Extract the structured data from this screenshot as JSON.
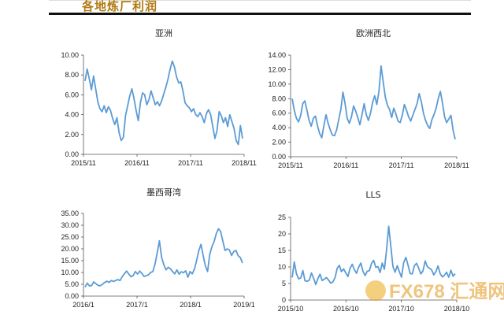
{
  "page": {
    "title": "各地炼厂利润",
    "watermark": "FX678 汇通网"
  },
  "colors": {
    "series": "#5b9bd5",
    "title": "#b07a10"
  },
  "chart_data": [
    {
      "type": "line",
      "title": "亚洲",
      "ylim": [
        0,
        10
      ],
      "yticks": [
        "10.00",
        "8.00",
        "6.00",
        "4.00",
        "2.00",
        "0.00"
      ],
      "xticks": [
        "2015/11",
        "2016/11",
        "2017/11",
        "2018/11"
      ],
      "x_range": [
        "2015/11",
        "2018/12"
      ],
      "grid": false,
      "series": [
        {
          "values": [
            7.4,
            8.6,
            7.6,
            6.5,
            7.9,
            6.6,
            5.3,
            4.6,
            4.3,
            4.9,
            4.2,
            4.8,
            4.4,
            3.6,
            3.0,
            3.7,
            2.2,
            1.4,
            1.7,
            3.9,
            4.9,
            5.9,
            6.6,
            5.6,
            4.4,
            3.4,
            5.2,
            6.2,
            6.0,
            5.0,
            5.5,
            6.4,
            5.7,
            5.0,
            5.3,
            4.9,
            5.4,
            6.1,
            6.8,
            7.6,
            8.6,
            9.4,
            8.8,
            7.8,
            7.2,
            7.3,
            6.4,
            5.2,
            4.9,
            4.7,
            4.3,
            4.6,
            4.0,
            3.8,
            4.2,
            3.8,
            3.2,
            4.1,
            4.5,
            4.0,
            2.8,
            1.6,
            2.4,
            4.3,
            3.9,
            3.2,
            3.7,
            2.8,
            4.0,
            3.3,
            2.6,
            1.4,
            1.0,
            2.9,
            1.6
          ]
        }
      ]
    },
    {
      "type": "line",
      "title": "欧洲西北",
      "ylim": [
        0,
        14
      ],
      "yticks": [
        "14.00",
        "12.00",
        "10.00",
        "8.00",
        "6.00",
        "4.00",
        "2.00",
        "0.00"
      ],
      "xticks": [
        "2015/11",
        "2016/11",
        "2017/11",
        "2018/11"
      ],
      "x_range": [
        "2015/11",
        "2018/12"
      ],
      "grid": false,
      "series": [
        {
          "values": [
            8.0,
            6.4,
            5.3,
            4.8,
            5.7,
            7.3,
            7.7,
            6.4,
            5.0,
            4.2,
            5.3,
            5.6,
            4.2,
            3.2,
            2.6,
            4.3,
            5.8,
            4.6,
            3.7,
            3.0,
            2.9,
            3.7,
            5.1,
            6.5,
            8.9,
            7.3,
            5.3,
            4.6,
            5.5,
            7.0,
            6.3,
            5.4,
            4.4,
            5.8,
            7.3,
            5.8,
            5.0,
            6.0,
            7.5,
            8.4,
            7.2,
            9.0,
            12.5,
            10.3,
            8.2,
            7.1,
            6.5,
            5.4,
            6.7,
            5.9,
            4.9,
            4.7,
            5.7,
            7.2,
            6.4,
            5.5,
            4.9,
            5.7,
            6.5,
            7.3,
            8.7,
            7.6,
            6.0,
            5.0,
            4.3,
            3.9,
            5.1,
            5.8,
            6.7,
            8.0,
            9.0,
            7.4,
            5.5,
            4.7,
            5.2,
            5.7,
            3.7,
            2.4
          ]
        }
      ]
    },
    {
      "type": "line",
      "title": "墨西哥湾",
      "ylim": [
        0,
        35
      ],
      "yticks": [
        "35.00",
        "30.00",
        "25.00",
        "20.00",
        "15.00",
        "10.00",
        "5.00",
        "0.00"
      ],
      "xticks": [
        "2016/1",
        "2017/1",
        "2018/1",
        "2019/1"
      ],
      "x_range": [
        "2016/1",
        "2019/1"
      ],
      "grid": false,
      "series": [
        {
          "values": [
            3.8,
            5.5,
            4.3,
            4.5,
            6.0,
            5.2,
            4.5,
            4.4,
            5.0,
            5.8,
            6.3,
            5.8,
            6.6,
            6.2,
            6.6,
            7.0,
            6.6,
            8.2,
            9.5,
            10.6,
            9.3,
            8.2,
            8.7,
            10.4,
            9.3,
            10.6,
            9.6,
            8.3,
            8.7,
            9.0,
            10.0,
            10.4,
            13.6,
            18.4,
            23.4,
            16.4,
            13.3,
            11.1,
            12.2,
            11.6,
            10.4,
            9.4,
            11.1,
            9.3,
            10.3,
            9.9,
            10.7,
            8.0,
            10.4,
            9.4,
            11.4,
            15.1,
            19.2,
            21.9,
            17.1,
            12.8,
            10.4,
            17.6,
            20.9,
            23.1,
            26.5,
            28.5,
            27.3,
            23.2,
            19.3,
            20.0,
            19.5,
            17.2,
            18.9,
            19.3,
            17.1,
            16.3,
            14.0
          ]
        }
      ]
    },
    {
      "type": "line",
      "title": "LLS",
      "ylim": [
        0,
        25
      ],
      "yticks": [
        "25",
        "20",
        "15",
        "10",
        "5",
        "0"
      ],
      "xticks": [
        "2015/10",
        "2016/10",
        "2017/10",
        "2018/10"
      ],
      "x_range": [
        "2015/10",
        "2018/11"
      ],
      "grid": false,
      "series": [
        {
          "values": [
            6.8,
            11.5,
            8.0,
            6.4,
            6.7,
            8.9,
            5.8,
            5.7,
            6.0,
            8.2,
            6.6,
            4.7,
            6.5,
            7.8,
            5.9,
            6.3,
            6.8,
            6.0,
            5.1,
            5.5,
            6.8,
            9.6,
            10.5,
            8.6,
            9.4,
            8.2,
            7.1,
            9.6,
            10.8,
            9.2,
            8.1,
            9.9,
            11.2,
            8.7,
            7.4,
            8.7,
            8.9,
            11.1,
            12.0,
            9.9,
            10.1,
            8.3,
            11.2,
            9.3,
            15.0,
            22.3,
            16.2,
            10.1,
            8.4,
            10.4,
            8.5,
            6.9,
            11.3,
            12.9,
            10.6,
            8.0,
            7.9,
            10.4,
            11.1,
            9.6,
            7.9,
            8.8,
            11.8,
            10.1,
            9.6,
            9.2,
            7.6,
            8.6,
            10.3,
            8.0,
            7.0,
            7.5,
            8.4,
            6.9,
            9.0,
            7.2,
            8.0
          ]
        }
      ]
    }
  ]
}
